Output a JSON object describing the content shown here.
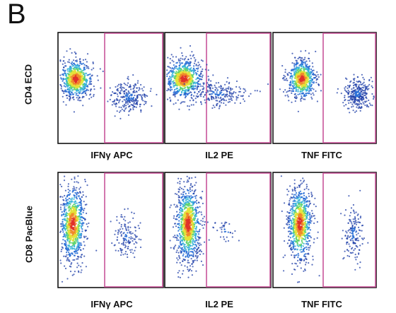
{
  "figure": {
    "panel_label": "B"
  },
  "chart_data": [
    {
      "type": "scatter",
      "subtype": "flow-cytometry-density",
      "ylabel": "CD4 ECD",
      "panels": [
        {
          "xlabel": "IFNγ APC",
          "populations": [
            {
              "cx": 0.17,
              "cy": 0.58,
              "sx": 0.08,
              "sy": 0.09,
              "weight": 0.72,
              "peak": true
            },
            {
              "cx": 0.68,
              "cy": 0.42,
              "sx": 0.09,
              "sy": 0.07,
              "weight": 0.28,
              "peak": false
            }
          ]
        },
        {
          "xlabel": "IL2 PE",
          "populations": [
            {
              "cx": 0.18,
              "cy": 0.58,
              "sx": 0.09,
              "sy": 0.09,
              "weight": 0.75,
              "peak": true
            },
            {
              "cx": 0.5,
              "cy": 0.45,
              "sx": 0.15,
              "sy": 0.06,
              "weight": 0.25,
              "peak": false
            }
          ]
        },
        {
          "xlabel": "TNF FITC",
          "populations": [
            {
              "cx": 0.28,
              "cy": 0.58,
              "sx": 0.07,
              "sy": 0.09,
              "weight": 0.65,
              "peak": true
            },
            {
              "cx": 0.82,
              "cy": 0.45,
              "sx": 0.06,
              "sy": 0.07,
              "weight": 0.35,
              "peak": false
            }
          ]
        }
      ],
      "gate_color": "#c8559a"
    },
    {
      "type": "scatter",
      "subtype": "flow-cytometry-density",
      "ylabel": "CD8 PacBlue",
      "panels": [
        {
          "xlabel": "IFNγ APC",
          "populations": [
            {
              "cx": 0.14,
              "cy": 0.55,
              "sx": 0.06,
              "sy": 0.17,
              "weight": 0.85,
              "peak": true
            },
            {
              "cx": 0.65,
              "cy": 0.45,
              "sx": 0.06,
              "sy": 0.09,
              "weight": 0.15,
              "peak": false
            }
          ]
        },
        {
          "xlabel": "IL2 PE",
          "populations": [
            {
              "cx": 0.22,
              "cy": 0.55,
              "sx": 0.06,
              "sy": 0.17,
              "weight": 0.96,
              "peak": true
            },
            {
              "cx": 0.58,
              "cy": 0.5,
              "sx": 0.07,
              "sy": 0.05,
              "weight": 0.04,
              "peak": false
            }
          ]
        },
        {
          "xlabel": "TNF FITC",
          "populations": [
            {
              "cx": 0.26,
              "cy": 0.55,
              "sx": 0.06,
              "sy": 0.17,
              "weight": 0.82,
              "peak": true
            },
            {
              "cx": 0.78,
              "cy": 0.47,
              "sx": 0.05,
              "sy": 0.12,
              "weight": 0.18,
              "peak": false
            }
          ]
        }
      ],
      "gate_color": "#c8559a"
    }
  ]
}
